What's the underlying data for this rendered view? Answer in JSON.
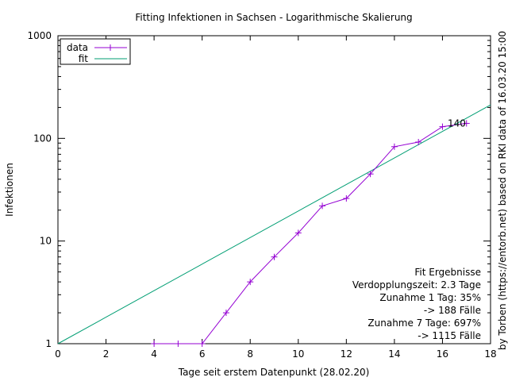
{
  "chart_data": {
    "type": "line",
    "title": "Fitting Infektionen in Sachsen - Logarithmische Skalierung",
    "xlabel": "Tage seit erstem Datenpunkt (28.02.20)",
    "ylabel": "Infektionen",
    "right_label": "by Torben (https://entorb.net) based on RKI data of 16.03.20 15:00",
    "x_scale": "linear",
    "y_scale": "log",
    "xlim": [
      0,
      18
    ],
    "ylim": [
      1,
      1000
    ],
    "x_ticks": [
      0,
      2,
      4,
      6,
      8,
      10,
      12,
      14,
      16,
      18
    ],
    "y_ticks": [
      1,
      10,
      100,
      1000
    ],
    "legend_position": "top-left",
    "grid": false,
    "series": [
      {
        "name": "data",
        "color": "#9400d3",
        "marker": "plus",
        "x": [
          4,
          5,
          6,
          7,
          8,
          9,
          10,
          11,
          12,
          13,
          14,
          15,
          16,
          17
        ],
        "y": [
          1,
          1,
          1,
          2,
          4,
          7,
          12,
          22,
          26,
          45,
          83,
          92,
          130,
          140
        ]
      },
      {
        "name": "fit",
        "color": "#009e73",
        "x": [
          0,
          18
        ],
        "y": [
          1,
          212
        ]
      }
    ],
    "annotations": [
      {
        "text": "140",
        "x": 16.2,
        "y": 140
      }
    ],
    "fit_results": {
      "title": "Fit Ergebnisse",
      "lines": [
        "Verdopplungszeit: 2.3 Tage",
        "Zunahme 1 Tag: 35%",
        "-> 188 Fälle",
        "Zunahme 7 Tage: 697%",
        "-> 1115 Fälle"
      ]
    }
  }
}
